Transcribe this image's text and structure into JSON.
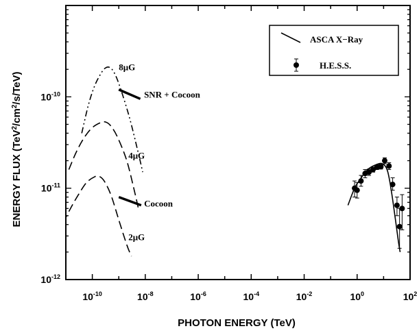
{
  "chart_data": {
    "type": "line",
    "title": "",
    "xlabel": "PHOTON ENERGY (TeV)",
    "ylabel_parts": [
      "ENERGY FLUX (TeV",
      "2",
      "/cm",
      "2",
      "/s/TeV)"
    ],
    "xscale": "log",
    "yscale": "log",
    "xlim": [
      1e-11,
      100
    ],
    "ylim": [
      1e-12,
      1e-09
    ],
    "grid": false,
    "legend_position": "top-right",
    "x_ticks": [
      {
        "value": 1e-10,
        "base": "10",
        "exp": "-10"
      },
      {
        "value": 1e-08,
        "base": "10",
        "exp": "-8"
      },
      {
        "value": 1e-06,
        "base": "10",
        "exp": "-6"
      },
      {
        "value": 0.0001,
        "base": "10",
        "exp": "-4"
      },
      {
        "value": 0.01,
        "base": "10",
        "exp": "-2"
      },
      {
        "value": 1,
        "base": "10",
        "exp": "0"
      },
      {
        "value": 100,
        "base": "10",
        "exp": "2"
      }
    ],
    "y_ticks": [
      {
        "value": 1e-12,
        "base": "10",
        "exp": "-12"
      },
      {
        "value": 1e-11,
        "base": "10",
        "exp": "-11"
      },
      {
        "value": 1e-10,
        "base": "10",
        "exp": "-10"
      }
    ],
    "legend": [
      {
        "label": "ASCA X−Ray",
        "marker": "line"
      },
      {
        "label": "H.E.S.S.",
        "marker": "point-errorbar"
      }
    ],
    "series": [
      {
        "label": "8μG",
        "style": "dash-dot-dot",
        "points": [
          [
            4e-11,
            4e-11
          ],
          [
            7e-11,
            8e-11
          ],
          [
            1.2e-10,
            1.3e-10
          ],
          [
            2e-10,
            1.75e-10
          ],
          [
            3e-10,
            2.05e-10
          ],
          [
            4.5e-10,
            2.1e-10
          ],
          [
            7e-10,
            1.8e-10
          ],
          [
            1.2e-09,
            1.2e-10
          ],
          [
            2.5e-09,
            6e-11
          ],
          [
            5e-09,
            2.7e-11
          ],
          [
            8e-09,
            1.5e-11
          ]
        ]
      },
      {
        "label": "4μG",
        "style": "dashed",
        "points": [
          [
            1.3e-11,
            1.6e-11
          ],
          [
            2.5e-11,
            2.5e-11
          ],
          [
            5e-11,
            3.6e-11
          ],
          [
            1e-10,
            4.6e-11
          ],
          [
            2e-10,
            5.2e-11
          ],
          [
            3.2e-10,
            5.3e-11
          ],
          [
            5e-10,
            4.8e-11
          ],
          [
            9e-10,
            3.6e-11
          ],
          [
            2e-09,
            2e-11
          ],
          [
            4e-09,
            9e-12
          ],
          [
            5.5e-09,
            6e-12
          ]
        ]
      },
      {
        "label": "2μG",
        "style": "dashed",
        "points": [
          [
            8e-12,
            4.2e-12
          ],
          [
            1.5e-11,
            6e-12
          ],
          [
            3e-11,
            8.5e-12
          ],
          [
            6e-11,
            1.15e-11
          ],
          [
            1.2e-10,
            1.33e-11
          ],
          [
            1.8e-10,
            1.35e-11
          ],
          [
            2.8e-10,
            1.2e-11
          ],
          [
            5e-10,
            8.5e-12
          ],
          [
            1e-09,
            4.5e-12
          ],
          [
            2e-09,
            2.4e-12
          ],
          [
            3e-09,
            1.8e-12
          ]
        ]
      },
      {
        "label": "ASCA X−Ray",
        "style": "solid",
        "points": [
          [
            0.45,
            6.5e-12
          ],
          [
            0.8,
            1e-11
          ],
          [
            1.3,
            1.25e-11
          ],
          [
            2.5,
            1.6e-11
          ],
          [
            5,
            1.8e-11
          ],
          [
            9,
            1.85e-11
          ],
          [
            14,
            1.55e-11
          ],
          [
            20,
            9e-12
          ],
          [
            28,
            4.5e-12
          ],
          [
            35,
            2.8e-12
          ],
          [
            42,
            2e-12
          ]
        ]
      }
    ],
    "band_segments": [
      {
        "label": "SNR + Cocoon",
        "from": [
          1e-09,
          1.2e-10
        ],
        "to": [
          6.5e-09,
          9.5e-11
        ]
      },
      {
        "label": "Cocoon",
        "from": [
          1e-09,
          8e-12
        ],
        "to": [
          7e-09,
          6.5e-12
        ]
      }
    ],
    "hess_points": [
      {
        "x": 0.8,
        "y": 1e-11,
        "ylo": 8e-12,
        "yhi": 1.2e-11
      },
      {
        "x": 1.0,
        "y": 9.5e-12,
        "ylo": 7.8e-12,
        "yhi": 1.15e-11
      },
      {
        "x": 1.4,
        "y": 1.2e-11,
        "ylo": 1.05e-11,
        "yhi": 1.38e-11
      },
      {
        "x": 2.0,
        "y": 1.45e-11,
        "ylo": 1.3e-11,
        "yhi": 1.6e-11
      },
      {
        "x": 2.8,
        "y": 1.5e-11,
        "ylo": 1.38e-11,
        "yhi": 1.62e-11
      },
      {
        "x": 4.0,
        "y": 1.6e-11,
        "ylo": 1.5e-11,
        "yhi": 1.7e-11
      },
      {
        "x": 5.6,
        "y": 1.7e-11,
        "ylo": 1.6e-11,
        "yhi": 1.8e-11
      },
      {
        "x": 7.9,
        "y": 1.72e-11,
        "ylo": 1.62e-11,
        "yhi": 1.82e-11
      },
      {
        "x": 11,
        "y": 2e-11,
        "ylo": 1.85e-11,
        "yhi": 2.15e-11
      },
      {
        "x": 16,
        "y": 1.75e-11,
        "ylo": 1.6e-11,
        "yhi": 1.9e-11
      },
      {
        "x": 22,
        "y": 1.1e-11,
        "ylo": 9.5e-12,
        "yhi": 1.3e-11
      },
      {
        "x": 32,
        "y": 6.5e-12,
        "ylo": 5e-12,
        "yhi": 8e-12
      },
      {
        "x": 40,
        "y": 3.8e-12,
        "ylo": 2.2e-12,
        "yhi": 6e-12
      },
      {
        "x": 50,
        "y": 6e-12,
        "ylo": 3.5e-12,
        "yhi": 8.5e-12
      }
    ],
    "annotations": [
      {
        "text": "8μG",
        "x": 1e-09,
        "y": 1.95e-10
      },
      {
        "text": "SNR + Cocoon",
        "x": 9e-09,
        "y": 9.8e-11
      },
      {
        "text": "4μG",
        "x": 2.3e-09,
        "y": 2.1e-11
      },
      {
        "text": "Cocoon",
        "x": 9e-09,
        "y": 6.3e-12
      },
      {
        "text": "2μG",
        "x": 2.3e-09,
        "y": 2.7e-12
      }
    ]
  }
}
